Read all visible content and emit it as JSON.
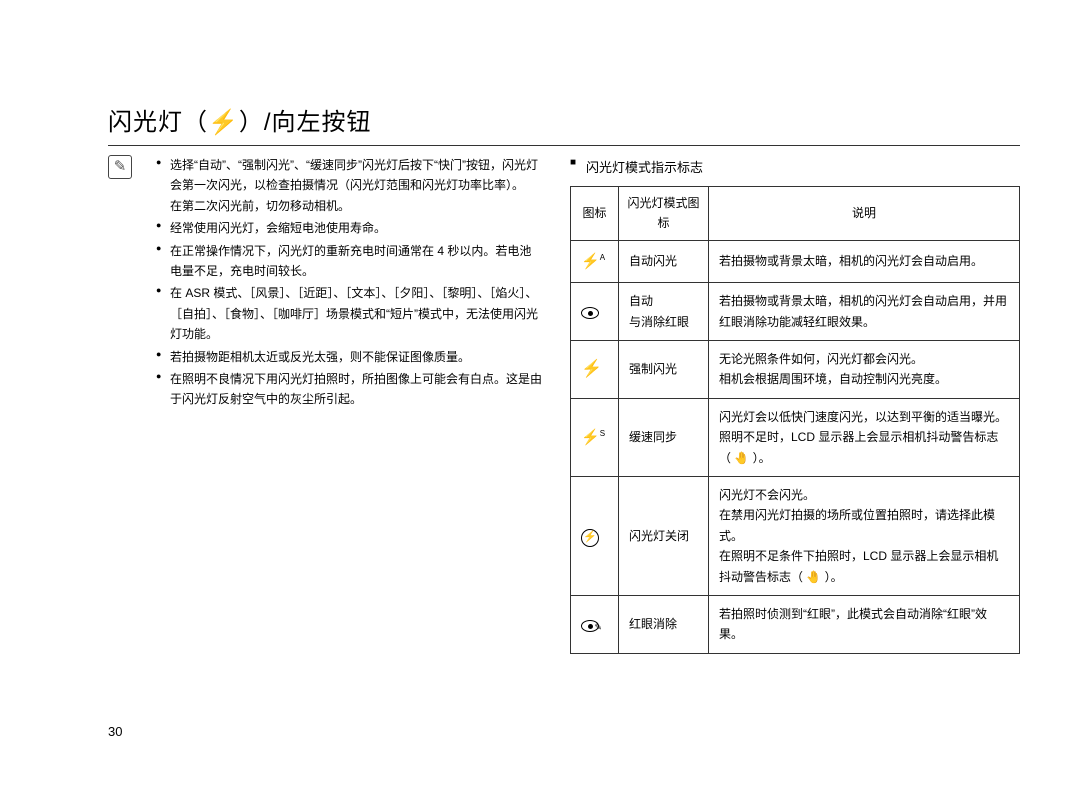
{
  "title": {
    "pre": "闪光灯（",
    "glyph": "⚡",
    "post": "）/向左按钮"
  },
  "notes": [
    {
      "main": "选择“自动”、“强制闪光”、“缓速同步”闪光灯后按下“快门”按钮，闪光灯会第一次闪光，以检查拍摄情况（闪光灯范围和闪光灯功率比率）。",
      "sub": "在第二次闪光前，切勿移动相机。"
    },
    {
      "main": "经常使用闪光灯，会缩短电池使用寿命。"
    },
    {
      "main": "在正常操作情况下，闪光灯的重新充电时间通常在 4 秒以内。若电池电量不足，充电时间较长。"
    },
    {
      "main": "在 ASR 模式、［风景］、［近距］、［文本］、［夕阳］、［黎明］、［焰火］、［自拍］、［食物］、［咖啡厅］场景模式和“短片”模式中，无法使用闪光灯功能。"
    },
    {
      "main": "若拍摄物距相机太近或反光太强，则不能保证图像质量。"
    },
    {
      "main": "在照明不良情况下用闪光灯拍照时，所拍图像上可能会有白点。这是由于闪光灯反射空气中的灰尘所引起。"
    }
  ],
  "section_header": "闪光灯模式指示标志",
  "table": {
    "headers": [
      "图标",
      "闪光灯模式图标",
      "说明"
    ],
    "rows": [
      {
        "icon": "auto",
        "name": "自动闪光",
        "desc": "若拍摄物或背景太暗，相机的闪光灯会自动启用。"
      },
      {
        "icon": "redeye",
        "name": "自动\n与消除红眼",
        "desc": "若拍摄物或背景太暗，相机的闪光灯会自动启用，并用红眼消除功能减轻红眼效果。"
      },
      {
        "icon": "fill",
        "name": "强制闪光",
        "desc": "无论光照条件如何，闪光灯都会闪光。\n相机会根据周围环境，自动控制闪光亮度。"
      },
      {
        "icon": "slow",
        "name": "缓速同步",
        "desc": "闪光灯会以低快门速度闪光，以达到平衡的适当曝光。\n照明不足时，LCD 显示器上会显示相机抖动警告标志（ 🤚 ）。"
      },
      {
        "icon": "off",
        "name": "闪光灯关闭",
        "desc": "闪光灯不会闪光。\n在禁用闪光灯拍摄的场所或位置拍照时，请选择此模式。\n在照明不足条件下拍照时，LCD 显示器上会显示相机抖动警告标志（ 🤚 ）。"
      },
      {
        "icon": "fix",
        "name": "红眼消除",
        "desc": "若拍照时侦测到“红眼”，此模式会自动消除“红眼”效果。"
      }
    ]
  },
  "page_number": "30"
}
